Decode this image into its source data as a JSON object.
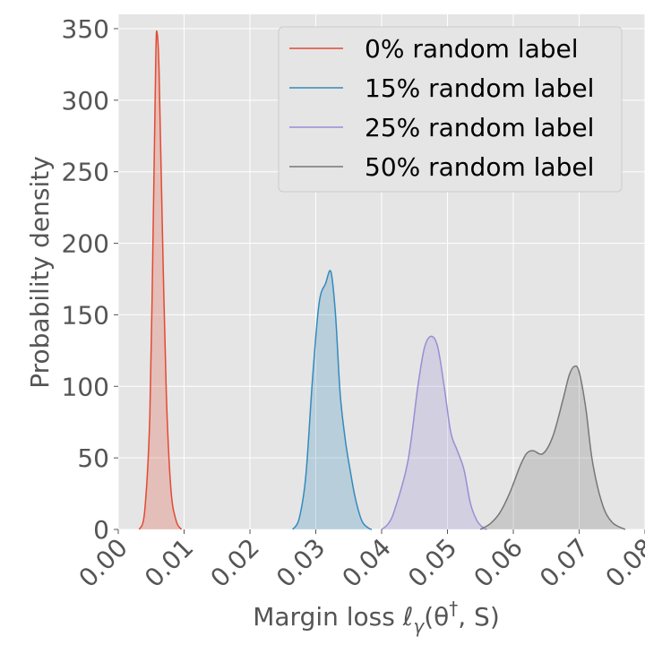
{
  "chart_data": {
    "type": "area",
    "xlabel": "Margin loss ℓγ(θ†, S)",
    "xlabel_parts": {
      "pre": "Margin loss ",
      "ell": "ℓ",
      "gamma": "γ",
      "args_open": "(θ",
      "dagger": "†",
      "args_close": ", S)"
    },
    "ylabel": "Probability density",
    "xlim": [
      0.0,
      0.08
    ],
    "ylim": [
      0,
      360
    ],
    "xticks": [
      "0.00",
      "0.01",
      "0.02",
      "0.03",
      "0.04",
      "0.05",
      "0.06",
      "0.07",
      "0.08"
    ],
    "xtick_values": [
      0.0,
      0.01,
      0.02,
      0.03,
      0.04,
      0.05,
      0.06,
      0.07,
      0.08
    ],
    "yticks": [
      "0",
      "50",
      "100",
      "150",
      "200",
      "250",
      "300",
      "350"
    ],
    "ytick_values": [
      0,
      50,
      100,
      150,
      200,
      250,
      300,
      350
    ],
    "grid": true,
    "legend_position": "top-right",
    "series": [
      {
        "name": "0% random label",
        "color": "#E24A33",
        "points": [
          [
            0.0032,
            0
          ],
          [
            0.004,
            12
          ],
          [
            0.0048,
            80
          ],
          [
            0.0053,
            210
          ],
          [
            0.0057,
            330
          ],
          [
            0.0059,
            347
          ],
          [
            0.0062,
            320
          ],
          [
            0.0067,
            210
          ],
          [
            0.0073,
            95
          ],
          [
            0.008,
            28
          ],
          [
            0.0088,
            6
          ],
          [
            0.0096,
            0
          ]
        ]
      },
      {
        "name": "15% random label",
        "color": "#348ABD",
        "points": [
          [
            0.0265,
            0
          ],
          [
            0.0275,
            8
          ],
          [
            0.0285,
            38
          ],
          [
            0.0295,
            105
          ],
          [
            0.0305,
            158
          ],
          [
            0.0315,
            172
          ],
          [
            0.0323,
            180
          ],
          [
            0.033,
            150
          ],
          [
            0.0337,
            95
          ],
          [
            0.0345,
            62
          ],
          [
            0.0352,
            42
          ],
          [
            0.036,
            22
          ],
          [
            0.037,
            6
          ],
          [
            0.038,
            1
          ],
          [
            0.0385,
            0
          ]
        ]
      },
      {
        "name": "25% random label",
        "color": "#988ED5",
        "points": [
          [
            0.04,
            0
          ],
          [
            0.041,
            4
          ],
          [
            0.042,
            14
          ],
          [
            0.044,
            48
          ],
          [
            0.0455,
            100
          ],
          [
            0.0465,
            127
          ],
          [
            0.0475,
            135
          ],
          [
            0.0485,
            128
          ],
          [
            0.0495,
            100
          ],
          [
            0.0505,
            68
          ],
          [
            0.0515,
            55
          ],
          [
            0.0525,
            42
          ],
          [
            0.0535,
            18
          ],
          [
            0.0545,
            6
          ],
          [
            0.0555,
            1
          ],
          [
            0.056,
            0
          ]
        ]
      },
      {
        "name": "50% random label",
        "color": "#777777",
        "points": [
          [
            0.055,
            0
          ],
          [
            0.0565,
            4
          ],
          [
            0.058,
            12
          ],
          [
            0.0595,
            26
          ],
          [
            0.061,
            44
          ],
          [
            0.062,
            53
          ],
          [
            0.063,
            55
          ],
          [
            0.0645,
            53
          ],
          [
            0.066,
            65
          ],
          [
            0.0675,
            90
          ],
          [
            0.0685,
            108
          ],
          [
            0.0693,
            114
          ],
          [
            0.07,
            110
          ],
          [
            0.071,
            85
          ],
          [
            0.072,
            48
          ],
          [
            0.0735,
            18
          ],
          [
            0.075,
            5
          ],
          [
            0.077,
            0
          ]
        ]
      }
    ]
  }
}
